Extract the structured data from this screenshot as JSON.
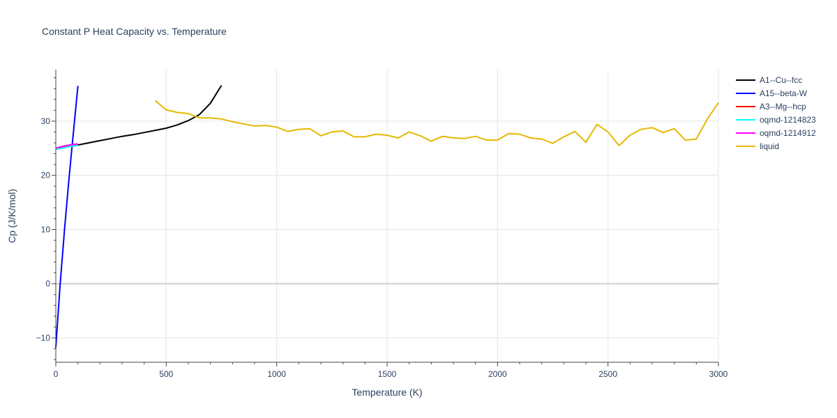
{
  "chart_data": {
    "type": "line",
    "title": "Constant P Heat Capacity vs. Temperature",
    "xlabel": "Temperature (K)",
    "ylabel": "Cp (J/K/mol)",
    "xlim": [
      0,
      3000
    ],
    "ylim": [
      -14.5,
      39.5
    ],
    "xticks": [
      0,
      500,
      1000,
      1500,
      2000,
      2500,
      3000
    ],
    "xtick_labels": [
      "0",
      "500",
      "1000",
      "1500",
      "2000",
      "2500",
      "3000"
    ],
    "yticks": [
      -10,
      0,
      10,
      20,
      30
    ],
    "ytick_labels": [
      "−10",
      "0",
      "10",
      "20",
      "30"
    ],
    "grid": true,
    "legend_position": "top-right",
    "series": [
      {
        "name": "A1--Cu--fcc",
        "color": "#000000",
        "x": [
          100,
          150,
          200,
          250,
          300,
          350,
          400,
          450,
          500,
          550,
          600,
          650,
          700,
          750
        ],
        "y": [
          25.6,
          26.0,
          26.4,
          26.8,
          27.2,
          27.5,
          27.9,
          28.3,
          28.7,
          29.3,
          30.1,
          31.2,
          33.3,
          36.6
        ]
      },
      {
        "name": "A15--beta-W",
        "color": "#0000ff",
        "x": [
          0,
          20,
          40,
          60,
          80,
          100
        ],
        "y": [
          -11.8,
          0.0,
          10.3,
          19.5,
          28.0,
          36.5
        ]
      },
      {
        "name": "A3--Mg--hcp",
        "color": "#ff0000",
        "x": [
          0,
          25,
          50,
          75,
          100
        ],
        "y": [
          24.9,
          25.1,
          25.3,
          25.4,
          25.6
        ]
      },
      {
        "name": "oqmd-1214823",
        "color": "#00ffff",
        "x": [
          0,
          25,
          50,
          75,
          100
        ],
        "y": [
          24.8,
          25.0,
          25.2,
          25.4,
          25.5
        ]
      },
      {
        "name": "oqmd-1214912",
        "color": "#ff00ff",
        "x": [
          0,
          25,
          50,
          75,
          100
        ],
        "y": [
          25.0,
          25.3,
          25.5,
          25.7,
          25.8
        ]
      },
      {
        "name": "liquid",
        "color": "#e6b800",
        "x": [
          450,
          500,
          550,
          600,
          650,
          700,
          750,
          800,
          850,
          900,
          950,
          1000,
          1050,
          1100,
          1150,
          1200,
          1250,
          1300,
          1350,
          1400,
          1450,
          1500,
          1550,
          1600,
          1650,
          1700,
          1750,
          1800,
          1850,
          1900,
          1950,
          2000,
          2050,
          2100,
          2150,
          2200,
          2250,
          2300,
          2350,
          2400,
          2450,
          2500,
          2550,
          2600,
          2650,
          2700,
          2750,
          2800,
          2850,
          2900,
          2950,
          3000
        ],
        "y": [
          33.8,
          32.1,
          31.6,
          31.4,
          30.6,
          30.6,
          30.4,
          29.9,
          29.5,
          29.1,
          29.2,
          28.9,
          28.1,
          28.5,
          28.6,
          27.3,
          28.0,
          28.2,
          27.1,
          27.1,
          27.6,
          27.4,
          26.9,
          28.0,
          27.3,
          26.3,
          27.2,
          26.9,
          26.8,
          27.2,
          26.5,
          26.5,
          27.7,
          27.6,
          26.9,
          26.7,
          25.9,
          27.1,
          28.1,
          26.1,
          29.4,
          28.0,
          25.5,
          27.4,
          28.5,
          28.8,
          27.9,
          28.6,
          26.5,
          26.7,
          30.4,
          33.4
        ]
      }
    ]
  }
}
